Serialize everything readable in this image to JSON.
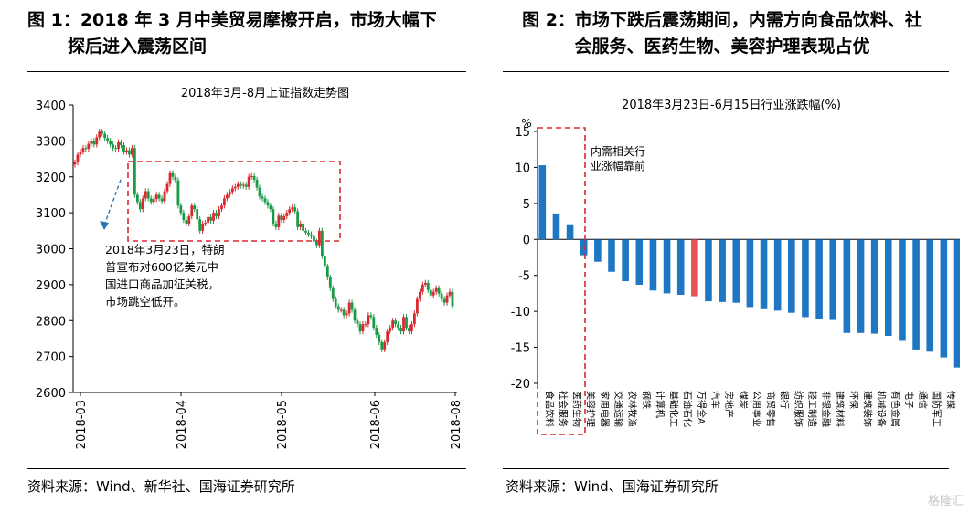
{
  "figure1": {
    "title_line1": "图 1：2018 年 3 月中美贸易摩擦开启，市场大幅下",
    "title_line2": "探后进入震荡区间",
    "source": "资料来源：Wind、新华社、国海证券研究所"
  },
  "figure2": {
    "title_line1": "图 2：市场下跌后震荡期间，内需方向食品饮料、社",
    "title_line2": "会服务、医药生物、美容护理表现占优",
    "source": "资料来源：Wind、国海证券研究所"
  },
  "watermark": "格隆汇",
  "colors": {
    "up": "#d9282e",
    "down": "#1a9a45",
    "bar": "#1f77c4",
    "highlight": "#e8505b",
    "box": "#d9282e"
  },
  "chart_data": [
    {
      "type": "candlestick",
      "title": "2018年3月-8月上证指数走势图",
      "ylim": [
        2600,
        3400
      ],
      "yticks": [
        2600,
        2700,
        2800,
        2900,
        3000,
        3100,
        3200,
        3300,
        3400
      ],
      "xticks": [
        "2018-03",
        "2018-04",
        "2018-05",
        "2018-06",
        "2018-08"
      ],
      "annotation": "2018年3月23日，特朗\n普宣布对600亿美元中\n国进口商品加征关税，\n市场跳空低开。",
      "series_close_approx": [
        3240,
        3262,
        3270,
        3280,
        3278,
        3292,
        3300,
        3290,
        3310,
        3326,
        3320,
        3308,
        3300,
        3290,
        3280,
        3278,
        3296,
        3288,
        3270,
        3274,
        3262,
        3280,
        3150,
        3130,
        3110,
        3140,
        3160,
        3140,
        3130,
        3138,
        3150,
        3140,
        3132,
        3160,
        3180,
        3210,
        3200,
        3190,
        3120,
        3100,
        3080,
        3070,
        3090,
        3120,
        3110,
        3082,
        3050,
        3070,
        3072,
        3088,
        3078,
        3100,
        3090,
        3110,
        3120,
        3140,
        3150,
        3158,
        3168,
        3172,
        3180,
        3175,
        3178,
        3172,
        3200,
        3202,
        3192,
        3170,
        3145,
        3140,
        3130,
        3120,
        3110,
        3070,
        3060,
        3092,
        3080,
        3090,
        3100,
        3110,
        3115,
        3104,
        3060,
        3070,
        3050,
        3045,
        3040,
        3035,
        3020,
        3010,
        3050,
        2980,
        2950,
        2920,
        2890,
        2860,
        2840,
        2830,
        2830,
        2815,
        2820,
        2850,
        2830,
        2800,
        2790,
        2770,
        2790,
        2790,
        2815,
        2810,
        2780,
        2760,
        2740,
        2720,
        2740,
        2770,
        2780,
        2800,
        2790,
        2780,
        2770,
        2810,
        2780,
        2770,
        2790,
        2820,
        2860,
        2880,
        2900,
        2905,
        2885,
        2870,
        2880,
        2890,
        2875,
        2860,
        2850,
        2870,
        2880,
        2840
      ]
    },
    {
      "type": "bar",
      "title": "2018年3月23日-6月15日行业涨跌幅(%)",
      "ylabel": "%",
      "ylim": [
        -20,
        15
      ],
      "yticks": [
        15,
        10,
        5,
        0,
        -5,
        -10,
        -15,
        -20
      ],
      "annotation": "内需相关行\n业涨幅靠前",
      "categories": [
        "食品饮料",
        "社会服务",
        "医药生物",
        "美容护理",
        "家用电器",
        "交通运输",
        "农林牧渔",
        "钢铁",
        "计算机",
        "基础化工",
        "石油石化",
        "万得全A",
        "汽车",
        "房地产",
        "煤炭",
        "公用事业",
        "商贸零售",
        "银行",
        "纺织服饰",
        "轻工制造",
        "非银金融",
        "建筑材料",
        "环保",
        "建筑装饰",
        "机械设备",
        "有色金属",
        "电子",
        "通信",
        "国防军工",
        "传媒",
        "综合",
        "电力设备"
      ],
      "values": [
        10.3,
        3.6,
        2.1,
        -2.2,
        -3.1,
        -4.5,
        -5.8,
        -6.3,
        -7.1,
        -7.5,
        -7.7,
        -7.9,
        -8.6,
        -8.7,
        -8.8,
        -9.4,
        -9.7,
        -9.9,
        -10.2,
        -10.8,
        -11.1,
        -11.2,
        -13.0,
        -13.0,
        -13.1,
        -13.4,
        -14.1,
        -15.3,
        -15.6,
        -16.4,
        -17.8,
        -18.5
      ],
      "highlight_category": "万得全A"
    }
  ]
}
